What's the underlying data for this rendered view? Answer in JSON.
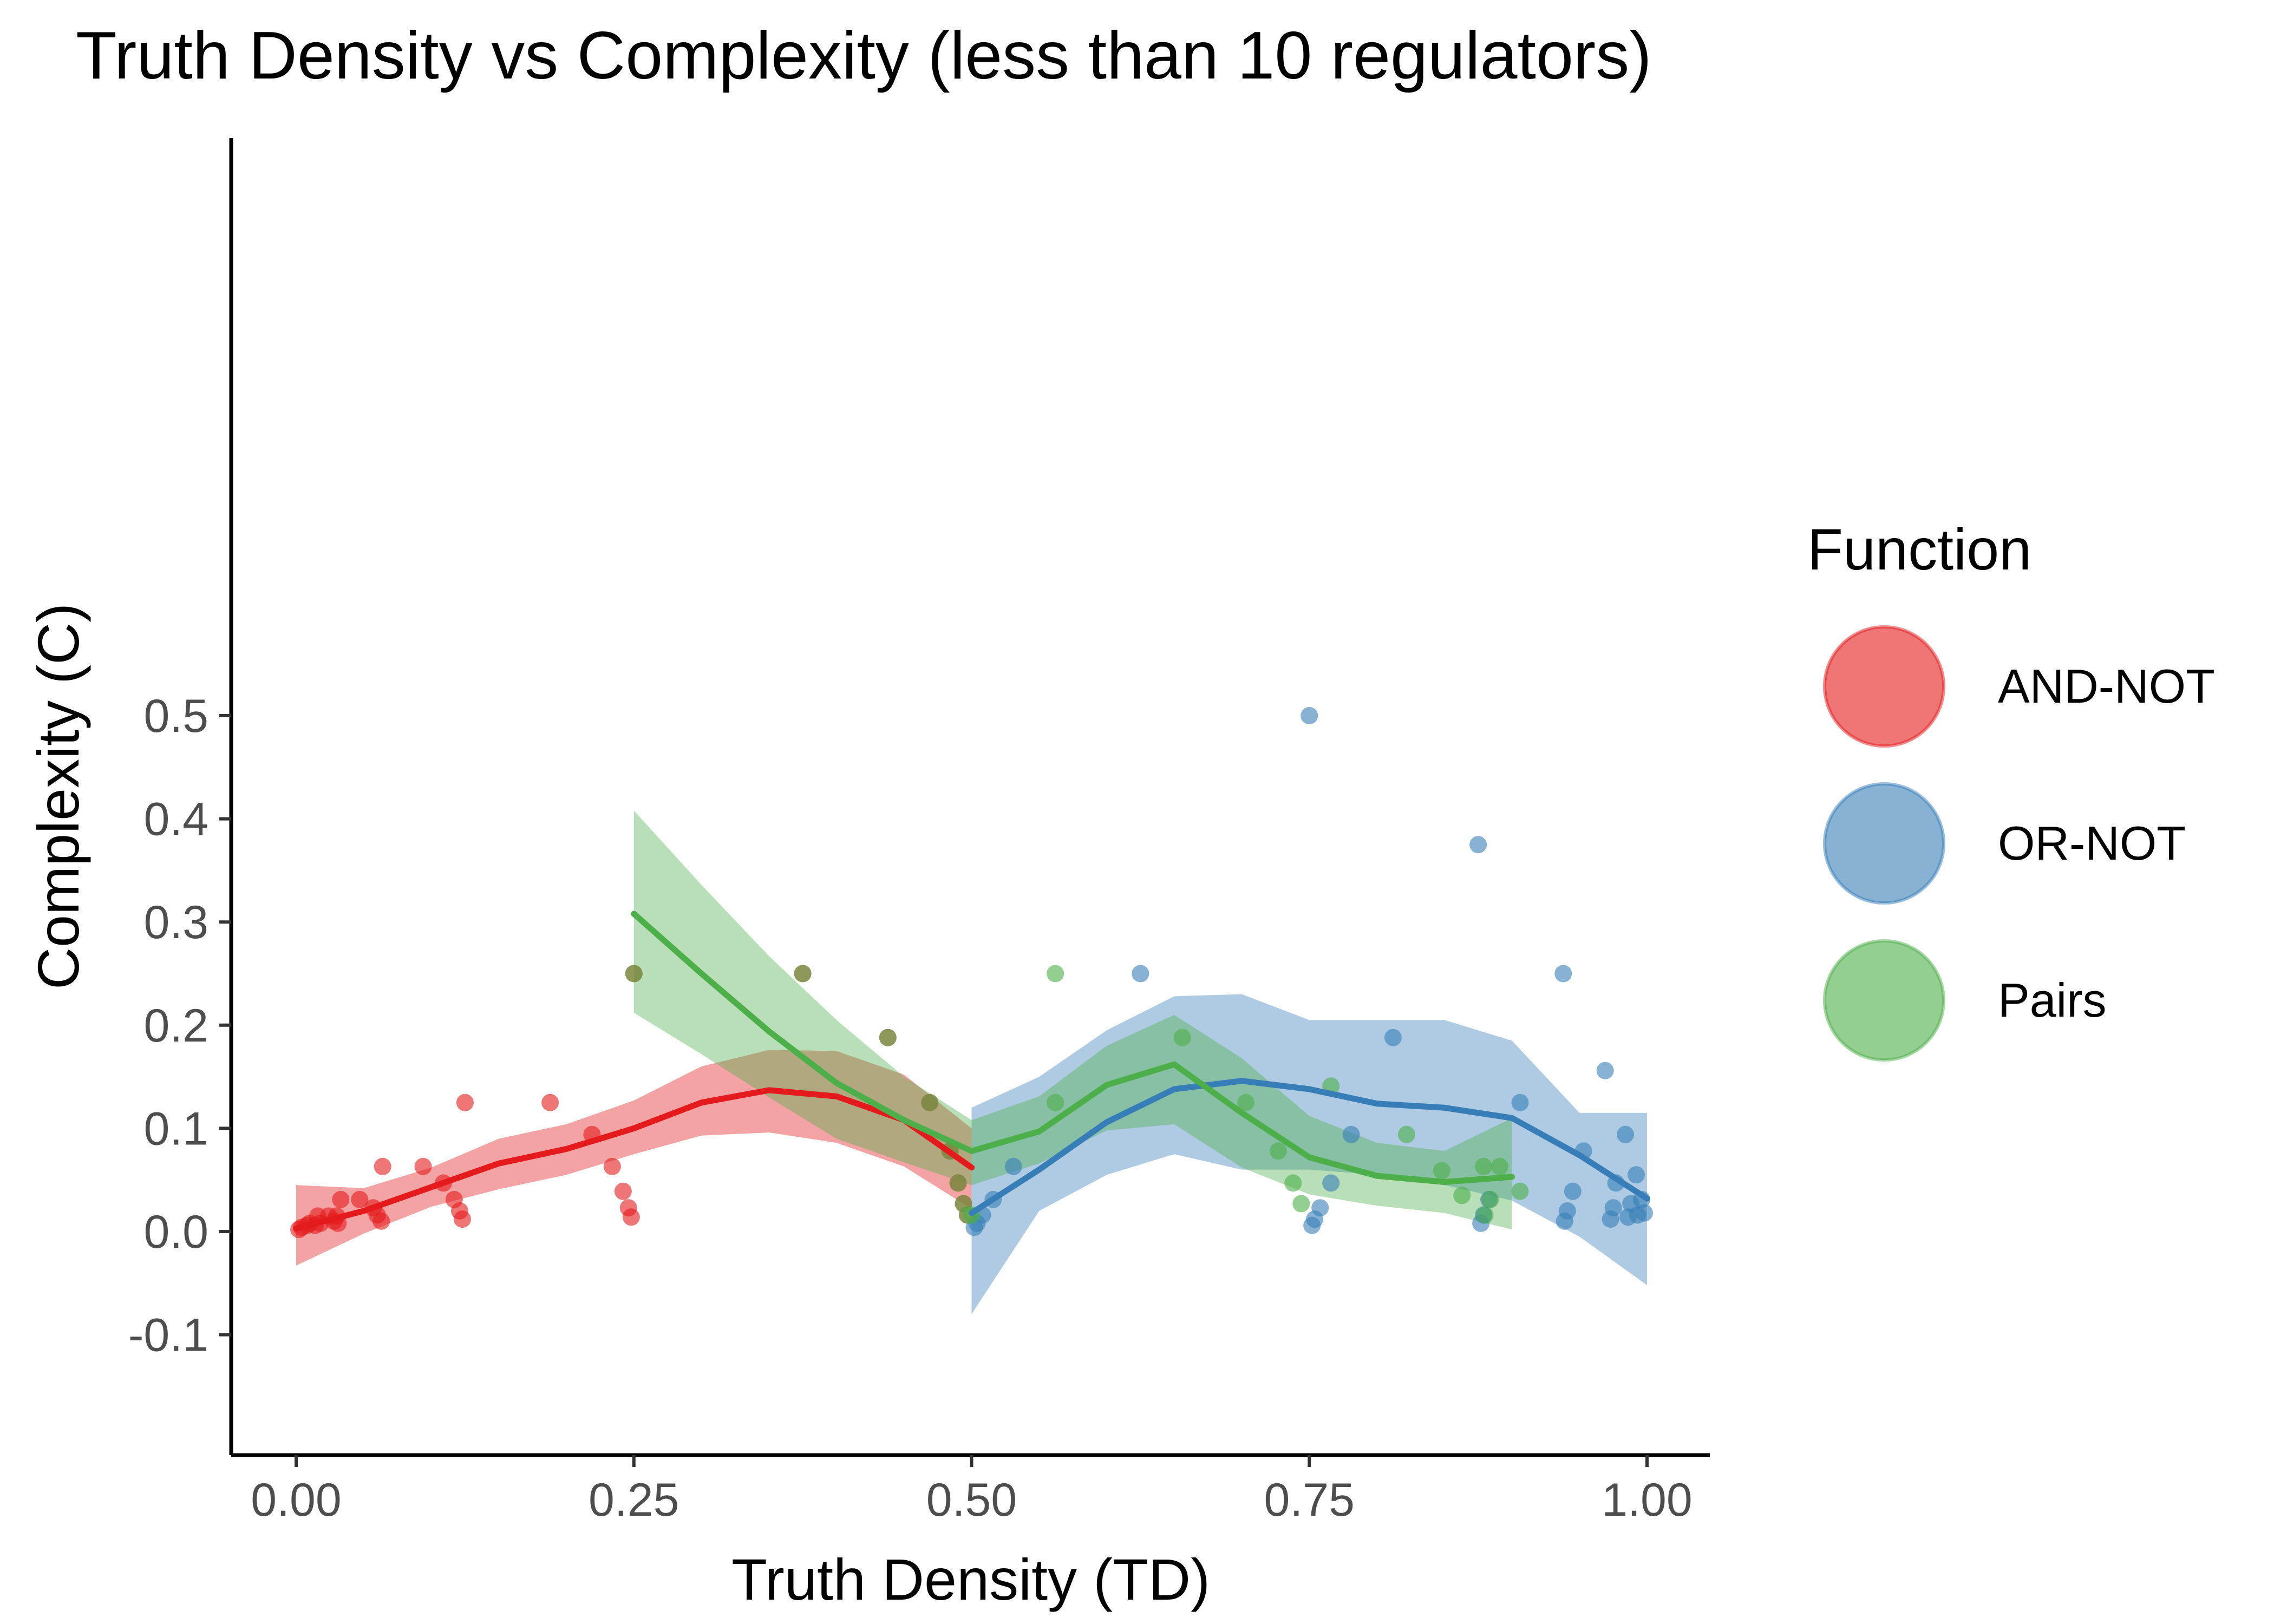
{
  "chart_data": {
    "type": "scatter",
    "title": "Truth Density vs Complexity (less than 10 regulators)",
    "xlabel": "Truth Density (TD)",
    "ylabel": "Complexity (C)",
    "xlim": [
      -0.05,
      1.05
    ],
    "ylim": [
      -0.11,
      0.53
    ],
    "x_ticks": [
      0,
      0.25,
      0.5,
      0.75,
      1.0
    ],
    "x_tick_labels": [
      "0.00",
      "0.25",
      "0.50",
      "0.75",
      "1.00"
    ],
    "y_ticks": [
      -0.1,
      0,
      0.1,
      0.2,
      0.3,
      0.4,
      0.5
    ],
    "y_tick_labels": [
      "-0.1",
      "0.0",
      "0.1",
      "0.2",
      "0.3",
      "0.4",
      "0.5"
    ],
    "grid": false,
    "legend": {
      "title": "Function",
      "position": "right"
    },
    "series": [
      {
        "name": "AND-NOT",
        "color": "#E41A1C",
        "points": [
          [
            0.002,
            0.002
          ],
          [
            0.004,
            0.004
          ],
          [
            0.008,
            0.006
          ],
          [
            0.01,
            0.008
          ],
          [
            0.014,
            0.006
          ],
          [
            0.016,
            0.015
          ],
          [
            0.018,
            0.008
          ],
          [
            0.024,
            0.015
          ],
          [
            0.028,
            0.01
          ],
          [
            0.03,
            0.015
          ],
          [
            0.031,
            0.008
          ],
          [
            0.033,
            0.031
          ],
          [
            0.047,
            0.031
          ],
          [
            0.057,
            0.023
          ],
          [
            0.06,
            0.016
          ],
          [
            0.063,
            0.01
          ],
          [
            0.064,
            0.063
          ],
          [
            0.094,
            0.063
          ],
          [
            0.109,
            0.047
          ],
          [
            0.117,
            0.031
          ],
          [
            0.121,
            0.02
          ],
          [
            0.123,
            0.012
          ],
          [
            0.125,
            0.125
          ],
          [
            0.188,
            0.125
          ],
          [
            0.219,
            0.094
          ],
          [
            0.234,
            0.063
          ],
          [
            0.242,
            0.039
          ],
          [
            0.246,
            0.023
          ],
          [
            0.248,
            0.014
          ],
          [
            0.25,
            0.25
          ],
          [
            0.375,
            0.25
          ],
          [
            0.438,
            0.188
          ],
          [
            0.469,
            0.125
          ],
          [
            0.484,
            0.078
          ],
          [
            0.49,
            0.047
          ],
          [
            0.494,
            0.027
          ],
          [
            0.497,
            0.016
          ]
        ],
        "smooth": {
          "x": [
            0.0,
            0.05,
            0.1,
            0.15,
            0.2,
            0.25,
            0.3,
            0.35,
            0.4,
            0.45,
            0.5
          ],
          "y": [
            0.003,
            0.02,
            0.043,
            0.066,
            0.08,
            0.1,
            0.125,
            0.137,
            0.131,
            0.108,
            0.062
          ],
          "lower": [
            -0.033,
            -0.002,
            0.024,
            0.041,
            0.055,
            0.075,
            0.093,
            0.096,
            0.086,
            0.063,
            0.022
          ],
          "upper": [
            0.045,
            0.042,
            0.062,
            0.09,
            0.104,
            0.127,
            0.16,
            0.176,
            0.175,
            0.152,
            0.1
          ]
        }
      },
      {
        "name": "OR-NOT",
        "color": "#377EB8",
        "points": [
          [
            0.502,
            0.004
          ],
          [
            0.504,
            0.008
          ],
          [
            0.508,
            0.016
          ],
          [
            0.516,
            0.031
          ],
          [
            0.531,
            0.063
          ],
          [
            0.625,
            0.25
          ],
          [
            0.75,
            0.5
          ],
          [
            0.752,
            0.006
          ],
          [
            0.754,
            0.012
          ],
          [
            0.758,
            0.023
          ],
          [
            0.766,
            0.047
          ],
          [
            0.781,
            0.094
          ],
          [
            0.812,
            0.188
          ],
          [
            0.875,
            0.375
          ],
          [
            0.877,
            0.008
          ],
          [
            0.879,
            0.016
          ],
          [
            0.883,
            0.031
          ],
          [
            0.906,
            0.125
          ],
          [
            0.938,
            0.25
          ],
          [
            0.939,
            0.01
          ],
          [
            0.941,
            0.02
          ],
          [
            0.945,
            0.039
          ],
          [
            0.953,
            0.078
          ],
          [
            0.969,
            0.156
          ],
          [
            0.973,
            0.012
          ],
          [
            0.975,
            0.023
          ],
          [
            0.977,
            0.047
          ],
          [
            0.984,
            0.094
          ],
          [
            0.986,
            0.014
          ],
          [
            0.988,
            0.027
          ],
          [
            0.992,
            0.055
          ],
          [
            0.993,
            0.016
          ],
          [
            0.996,
            0.031
          ],
          [
            0.998,
            0.018
          ]
        ],
        "smooth": {
          "x": [
            0.5,
            0.55,
            0.6,
            0.65,
            0.7,
            0.75,
            0.8,
            0.85,
            0.9,
            0.95,
            1.0
          ],
          "y": [
            0.018,
            0.06,
            0.106,
            0.138,
            0.146,
            0.138,
            0.124,
            0.12,
            0.11,
            0.074,
            0.032
          ],
          "lower": [
            -0.08,
            0.02,
            0.055,
            0.075,
            0.06,
            0.06,
            0.055,
            0.045,
            0.03,
            -0.005,
            -0.052
          ],
          "upper": [
            0.12,
            0.15,
            0.195,
            0.228,
            0.23,
            0.205,
            0.205,
            0.205,
            0.185,
            0.115,
            0.115
          ]
        }
      },
      {
        "name": "Pairs",
        "color": "#4DAF4A",
        "points": [
          [
            0.25,
            0.25
          ],
          [
            0.375,
            0.25
          ],
          [
            0.438,
            0.188
          ],
          [
            0.469,
            0.125
          ],
          [
            0.484,
            0.078
          ],
          [
            0.49,
            0.047
          ],
          [
            0.494,
            0.027
          ],
          [
            0.497,
            0.016
          ],
          [
            0.5,
            0.016
          ],
          [
            0.562,
            0.25
          ],
          [
            0.562,
            0.125
          ],
          [
            0.656,
            0.188
          ],
          [
            0.703,
            0.125
          ],
          [
            0.727,
            0.078
          ],
          [
            0.738,
            0.047
          ],
          [
            0.744,
            0.027
          ],
          [
            0.766,
            0.141
          ],
          [
            0.822,
            0.094
          ],
          [
            0.848,
            0.059
          ],
          [
            0.863,
            0.035
          ],
          [
            0.879,
            0.063
          ],
          [
            0.88,
            0.016
          ],
          [
            0.884,
            0.031
          ],
          [
            0.891,
            0.063
          ],
          [
            0.906,
            0.039
          ]
        ],
        "smooth": {
          "x": [
            0.25,
            0.3,
            0.35,
            0.4,
            0.45,
            0.5,
            0.55,
            0.6,
            0.65,
            0.7,
            0.75,
            0.8,
            0.85,
            0.9
          ],
          "y": [
            0.308,
            0.25,
            0.194,
            0.144,
            0.108,
            0.078,
            0.097,
            0.142,
            0.162,
            0.115,
            0.072,
            0.054,
            0.048,
            0.053
          ],
          "lower": [
            0.212,
            0.172,
            0.13,
            0.09,
            0.067,
            0.045,
            0.066,
            0.098,
            0.104,
            0.062,
            0.036,
            0.025,
            0.018,
            0.002
          ],
          "upper": [
            0.408,
            0.336,
            0.267,
            0.205,
            0.15,
            0.108,
            0.131,
            0.18,
            0.21,
            0.168,
            0.112,
            0.086,
            0.078,
            0.11
          ]
        }
      }
    ]
  }
}
